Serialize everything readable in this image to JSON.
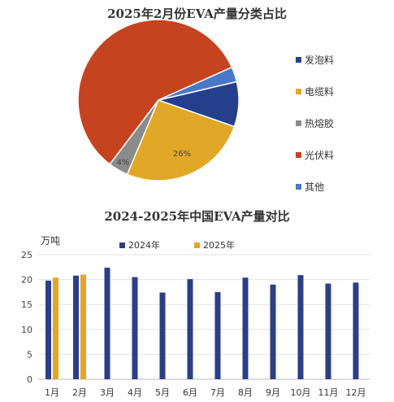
{
  "chart_data": [
    {
      "type": "pie",
      "title": "2025年2月份EVA产量分类占比",
      "legend_position": "right",
      "slices": [
        {
          "label": "发泡料",
          "value": 9,
          "color": "#243f8c",
          "data_label": ""
        },
        {
          "label": "电缆料",
          "value": 26,
          "color": "#e1a827",
          "data_label": "26%"
        },
        {
          "label": "热熔胶",
          "value": 4,
          "color": "#8c8c8c",
          "data_label": "4%"
        },
        {
          "label": "光伏料",
          "value": 58,
          "color": "#c5441f",
          "data_label": ""
        },
        {
          "label": "其他",
          "value": 3,
          "color": "#4a78c8",
          "data_label": ""
        }
      ]
    },
    {
      "type": "bar",
      "title": "2024-2025年中国EVA产量对比",
      "ylabel": "万吨",
      "ylim": [
        0,
        25
      ],
      "yticks": [
        "0",
        "5",
        "10",
        "15",
        "20",
        "25"
      ],
      "legend_position": "top",
      "grid": true,
      "categories": [
        "1月",
        "2月",
        "3月",
        "4月",
        "5月",
        "6月",
        "7月",
        "8月",
        "9月",
        "10月",
        "11月",
        "12月"
      ],
      "series": [
        {
          "name": "2024年",
          "color": "#2a3f86",
          "values": [
            19.8,
            20.8,
            22.4,
            20.5,
            17.4,
            20.1,
            17.5,
            20.4,
            19.0,
            20.9,
            19.2,
            19.4
          ]
        },
        {
          "name": "2025年",
          "color": "#e1a827",
          "values": [
            20.4,
            21.0,
            null,
            null,
            null,
            null,
            null,
            null,
            null,
            null,
            null,
            null
          ]
        }
      ]
    }
  ]
}
